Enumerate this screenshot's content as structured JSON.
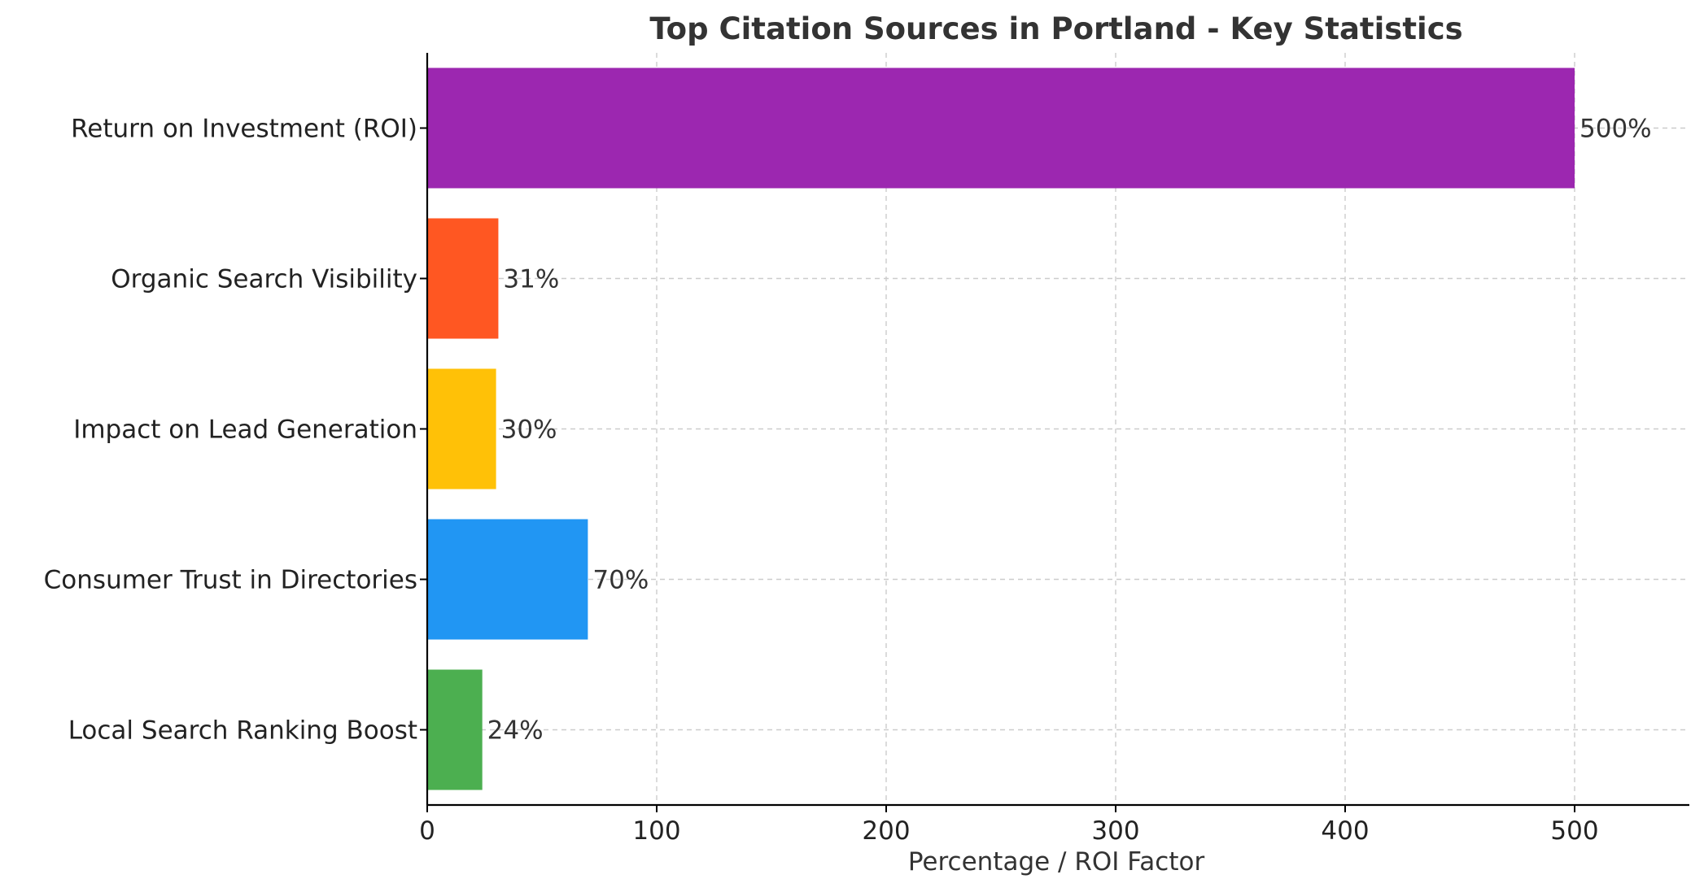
{
  "chart_data": {
    "type": "bar",
    "orientation": "horizontal",
    "title": "Top Citation Sources in Portland - Key Statistics",
    "xlabel": "Percentage / ROI Factor",
    "ylabel": "",
    "xlim": [
      0,
      550
    ],
    "xticks": [
      0,
      100,
      200,
      300,
      400,
      500
    ],
    "grid": true,
    "categories": [
      "Return on Investment (ROI)",
      "Organic Search Visibility",
      "Impact on Lead Generation",
      "Consumer Trust in Directories",
      "Local Search Ranking Boost"
    ],
    "values": [
      500,
      31,
      30,
      70,
      24
    ],
    "data_labels": [
      "500%",
      "31%",
      "30%",
      "70%",
      "24%"
    ],
    "colors": [
      "#9C27B0",
      "#FF5722",
      "#FFC107",
      "#2196F3",
      "#4CAF50"
    ]
  }
}
